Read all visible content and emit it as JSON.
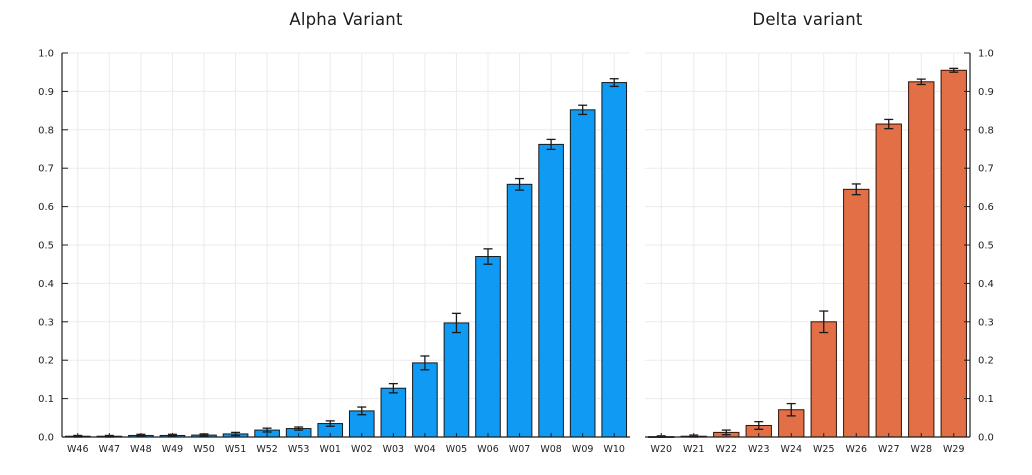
{
  "figure": {
    "background": "#ffffff"
  },
  "colors": {
    "grid": "#ebebeb",
    "axis": "#1f1f1f",
    "tick_text": "#1f1f1f",
    "title_text": "#1c1c1c"
  },
  "chart_data": [
    {
      "type": "bar",
      "title": "Alpha Variant",
      "xlabel": "",
      "ylabel": "",
      "categories": [
        "W46",
        "W47",
        "W48",
        "W49",
        "W50",
        "W51",
        "W52",
        "W53",
        "W01",
        "W02",
        "W03",
        "W04",
        "W05",
        "W06",
        "W07",
        "W08",
        "W09",
        "W10"
      ],
      "values": [
        0.002,
        0.002,
        0.004,
        0.004,
        0.005,
        0.008,
        0.018,
        0.022,
        0.035,
        0.068,
        0.127,
        0.193,
        0.297,
        0.47,
        0.658,
        0.762,
        0.852,
        0.923
      ],
      "errors": [
        0.002,
        0.002,
        0.003,
        0.003,
        0.003,
        0.004,
        0.005,
        0.004,
        0.007,
        0.01,
        0.012,
        0.018,
        0.025,
        0.02,
        0.015,
        0.013,
        0.012,
        0.01
      ],
      "ylim": [
        0.0,
        1.0
      ],
      "ytick_labels": [
        "0.0",
        "0.1",
        "0.2",
        "0.3",
        "0.4",
        "0.5",
        "0.6",
        "0.7",
        "0.8",
        "0.9",
        "1.0"
      ],
      "y_axis_side": "left",
      "grid": true,
      "legend": "none",
      "bar_color": "#0F9BF3",
      "bar_edge_color": "#15191c",
      "error_color": "#1a1a1a"
    },
    {
      "type": "bar",
      "title": "Delta variant",
      "xlabel": "",
      "ylabel": "",
      "categories": [
        "W20",
        "W21",
        "W22",
        "W23",
        "W24",
        "W25",
        "W26",
        "W27",
        "W28",
        "W29"
      ],
      "values": [
        0.001,
        0.002,
        0.012,
        0.03,
        0.071,
        0.3,
        0.645,
        0.815,
        0.925,
        0.955
      ],
      "errors": [
        0.002,
        0.003,
        0.006,
        0.01,
        0.016,
        0.028,
        0.014,
        0.012,
        0.007,
        0.005
      ],
      "ylim": [
        0.0,
        1.0
      ],
      "ytick_labels": [
        "0.0",
        "0.1",
        "0.2",
        "0.3",
        "0.4",
        "0.5",
        "0.6",
        "0.7",
        "0.8",
        "0.9",
        "1.0"
      ],
      "y_axis_side": "right",
      "grid": true,
      "legend": "none",
      "bar_color": "#E26F46",
      "bar_edge_color": "#33130a",
      "error_color": "#1a1a1a"
    }
  ]
}
